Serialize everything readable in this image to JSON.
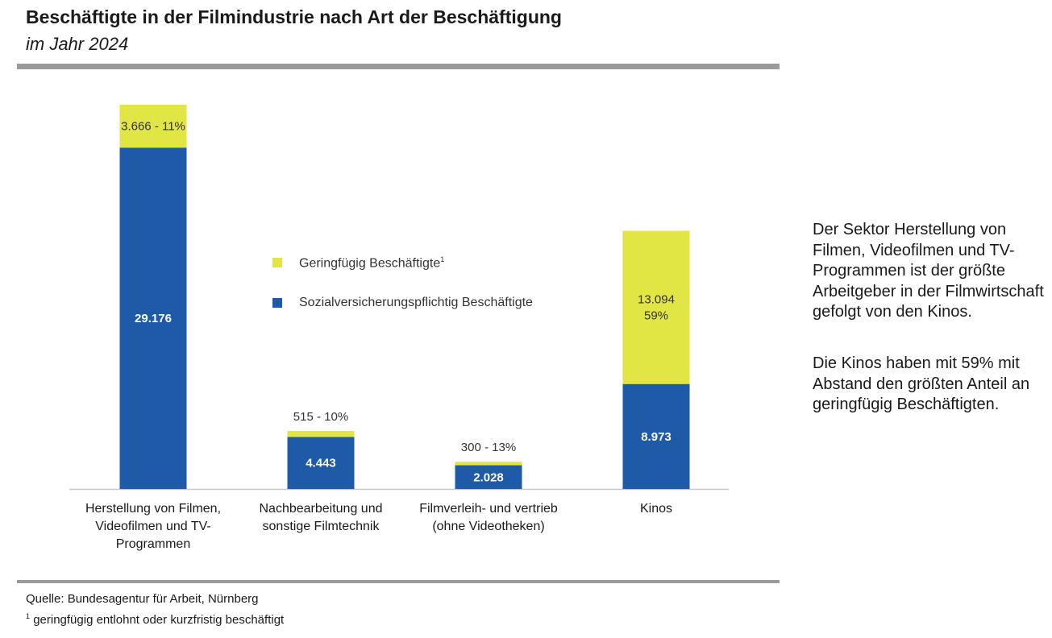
{
  "title": "Beschäftigte in der Filmindustrie nach Art der Beschäftigung",
  "subtitle": "im Jahr 2024",
  "legend": {
    "minor": "Geringfügig Beschäftigte",
    "minor_footnote_mark": "1",
    "social": "Sozialversicherungspflichtig Beschäftigte"
  },
  "side_note": {
    "paragraph1": "Der Sektor Herstellung von Filmen, Videofilmen und TV-Programmen ist der größte Arbeitgeber in der Filmwirtschaft gefolgt von den Kinos.",
    "paragraph2": "Die Kinos haben mit 59% mit Abstand den größten Anteil an geringfügig Beschäftigten."
  },
  "footer": {
    "source": "Quelle: Bundesagentur für Arbeit, Nürnberg",
    "footnote_mark": "1",
    "footnote": "geringfügig entlohnt oder kurzfristig beschäftigt"
  },
  "colors": {
    "social": "#1f5aa8",
    "minor": "#e2e645",
    "axis": "#c8c8c8"
  },
  "chart_data": {
    "type": "bar",
    "stacked": true,
    "categories": [
      "Herstellung von Filmen,\nVideofilmen und TV-\nProgrammen",
      "Nachbearbeitung und\nsonstige Filmtechnik",
      "Filmverleih- und vertrieb\n(ohne Videotheken)",
      "Kinos"
    ],
    "series": [
      {
        "name": "Sozialversicherungspflichtig Beschäftigte",
        "values": [
          29176,
          4443,
          2028,
          8973
        ],
        "labels": [
          "29.176",
          "4.443",
          "2.028",
          "8.973"
        ]
      },
      {
        "name": "Geringfügig Beschäftigte",
        "values": [
          3666,
          515,
          300,
          13094
        ],
        "labels": [
          "3.666 - 11%",
          "515 - 10%",
          "300 - 13%",
          "13.094\n59%"
        ]
      }
    ],
    "ylim": [
      0,
      32842
    ],
    "xlabel": "",
    "ylabel": "",
    "legend_position": "center"
  }
}
